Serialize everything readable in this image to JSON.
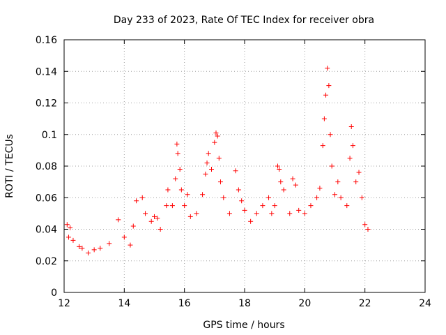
{
  "chart_data": {
    "type": "scatter",
    "title": "Day 233 of 2023, Rate Of TEC Index for receiver obra",
    "xlabel": "GPS time / hours",
    "ylabel": "ROTI / TECUs",
    "xlim": [
      12,
      24
    ],
    "ylim": [
      0,
      0.16
    ],
    "xticks": [
      "12",
      "14",
      "16",
      "18",
      "20",
      "22",
      "24"
    ],
    "yticks": [
      "0",
      "0.02",
      "0.04",
      "0.06",
      "0.08",
      "0.1",
      "0.12",
      "0.14",
      "0.16"
    ],
    "grid": true,
    "marker": "+",
    "color": "#ff0000",
    "series": [
      {
        "points": [
          [
            12.1,
            0.043
          ],
          [
            12.15,
            0.035
          ],
          [
            12.2,
            0.041
          ],
          [
            12.3,
            0.033
          ],
          [
            12.5,
            0.029
          ],
          [
            12.6,
            0.028
          ],
          [
            12.8,
            0.025
          ],
          [
            13.0,
            0.027
          ],
          [
            13.2,
            0.028
          ],
          [
            13.5,
            0.031
          ],
          [
            13.8,
            0.046
          ],
          [
            14.0,
            0.035
          ],
          [
            14.2,
            0.03
          ],
          [
            14.3,
            0.042
          ],
          [
            14.4,
            0.058
          ],
          [
            14.6,
            0.06
          ],
          [
            14.7,
            0.05
          ],
          [
            14.9,
            0.045
          ],
          [
            15.0,
            0.048
          ],
          [
            15.1,
            0.047
          ],
          [
            15.2,
            0.04
          ],
          [
            15.4,
            0.055
          ],
          [
            15.45,
            0.065
          ],
          [
            15.6,
            0.055
          ],
          [
            15.7,
            0.072
          ],
          [
            15.75,
            0.094
          ],
          [
            15.78,
            0.088
          ],
          [
            15.85,
            0.078
          ],
          [
            15.9,
            0.065
          ],
          [
            16.0,
            0.055
          ],
          [
            16.1,
            0.062
          ],
          [
            16.2,
            0.048
          ],
          [
            16.4,
            0.05
          ],
          [
            16.6,
            0.062
          ],
          [
            16.7,
            0.075
          ],
          [
            16.75,
            0.082
          ],
          [
            16.8,
            0.088
          ],
          [
            16.9,
            0.078
          ],
          [
            17.0,
            0.095
          ],
          [
            17.05,
            0.101
          ],
          [
            17.1,
            0.099
          ],
          [
            17.15,
            0.085
          ],
          [
            17.2,
            0.07
          ],
          [
            17.3,
            0.06
          ],
          [
            17.5,
            0.05
          ],
          [
            17.7,
            0.077
          ],
          [
            17.8,
            0.065
          ],
          [
            17.9,
            0.058
          ],
          [
            18.0,
            0.052
          ],
          [
            18.2,
            0.045
          ],
          [
            18.4,
            0.05
          ],
          [
            18.6,
            0.055
          ],
          [
            18.8,
            0.06
          ],
          [
            18.9,
            0.05
          ],
          [
            19.0,
            0.055
          ],
          [
            19.1,
            0.08
          ],
          [
            19.15,
            0.078
          ],
          [
            19.2,
            0.07
          ],
          [
            19.3,
            0.065
          ],
          [
            19.5,
            0.05
          ],
          [
            19.6,
            0.072
          ],
          [
            19.7,
            0.068
          ],
          [
            19.8,
            0.052
          ],
          [
            20.0,
            0.05
          ],
          [
            20.2,
            0.055
          ],
          [
            20.4,
            0.06
          ],
          [
            20.5,
            0.066
          ],
          [
            20.6,
            0.093
          ],
          [
            20.65,
            0.11
          ],
          [
            20.7,
            0.125
          ],
          [
            20.75,
            0.142
          ],
          [
            20.8,
            0.131
          ],
          [
            20.85,
            0.1
          ],
          [
            20.9,
            0.08
          ],
          [
            21.0,
            0.062
          ],
          [
            21.1,
            0.07
          ],
          [
            21.2,
            0.06
          ],
          [
            21.4,
            0.055
          ],
          [
            21.5,
            0.085
          ],
          [
            21.55,
            0.105
          ],
          [
            21.6,
            0.093
          ],
          [
            21.7,
            0.07
          ],
          [
            21.8,
            0.076
          ],
          [
            21.9,
            0.06
          ],
          [
            22.0,
            0.043
          ],
          [
            22.1,
            0.04
          ]
        ]
      }
    ]
  }
}
